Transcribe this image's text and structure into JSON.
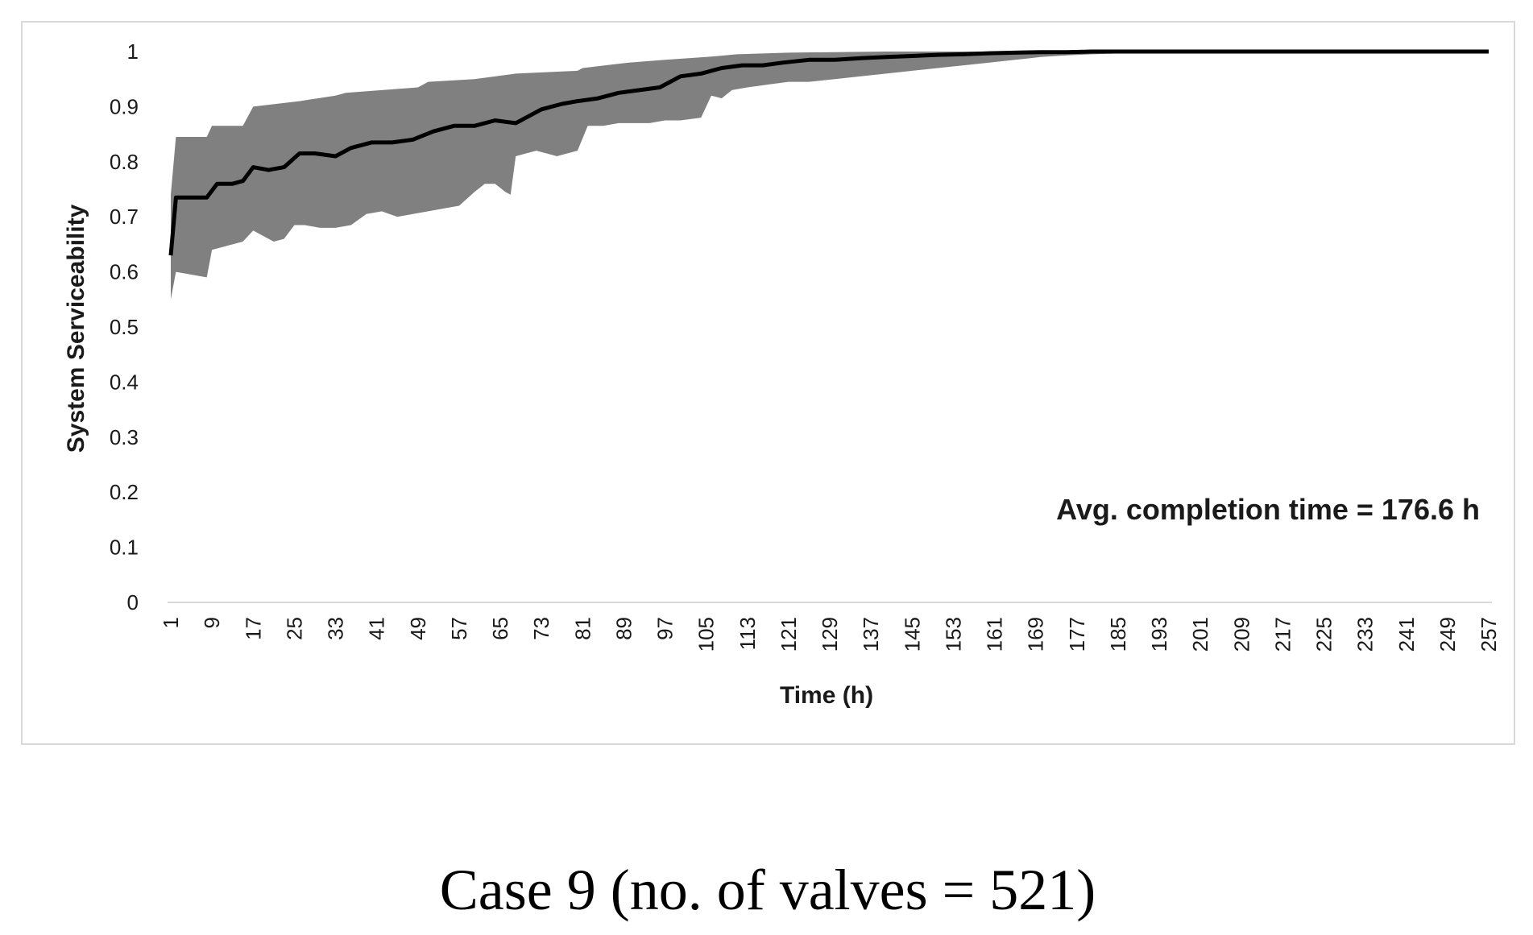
{
  "chart_data": {
    "type": "line",
    "ylabel": "System Serviceability",
    "xlabel": "Time (h)",
    "xlim": [
      1,
      257
    ],
    "ylim": [
      0,
      1
    ],
    "yticks": [
      "0",
      "0.1",
      "0.2",
      "0.3",
      "0.4",
      "0.5",
      "0.6",
      "0.7",
      "0.8",
      "0.9",
      "1"
    ],
    "xticks": [
      "1",
      "9",
      "17",
      "25",
      "33",
      "41",
      "49",
      "57",
      "65",
      "73",
      "81",
      "89",
      "97",
      "105",
      "113",
      "121",
      "129",
      "137",
      "145",
      "153",
      "161",
      "169",
      "177",
      "185",
      "193",
      "201",
      "209",
      "217",
      "225",
      "233",
      "241",
      "249",
      "257"
    ],
    "annotation": "Avg. completion time = 176.6 h",
    "grid": false,
    "series": [
      {
        "role": "mean",
        "color": "#000000",
        "x": [
          1,
          2,
          5,
          8,
          10,
          13,
          15,
          17,
          20,
          23,
          26,
          29,
          33,
          36,
          40,
          44,
          48,
          52,
          56,
          60,
          64,
          68,
          70,
          73,
          77,
          80,
          84,
          88,
          92,
          96,
          100,
          104,
          108,
          112,
          116,
          120,
          125,
          130,
          135,
          140,
          145,
          150,
          155,
          160,
          165,
          170,
          175,
          180,
          190,
          200,
          210,
          220,
          230,
          240,
          250,
          257
        ],
        "y": [
          0.63,
          0.735,
          0.735,
          0.735,
          0.76,
          0.76,
          0.765,
          0.79,
          0.785,
          0.79,
          0.815,
          0.815,
          0.81,
          0.825,
          0.835,
          0.835,
          0.84,
          0.855,
          0.865,
          0.865,
          0.875,
          0.87,
          0.88,
          0.895,
          0.905,
          0.91,
          0.915,
          0.925,
          0.93,
          0.935,
          0.955,
          0.96,
          0.97,
          0.975,
          0.975,
          0.98,
          0.985,
          0.985,
          0.988,
          0.99,
          0.992,
          0.994,
          0.995,
          0.997,
          0.998,
          0.999,
          0.999,
          1.0,
          1.0,
          1.0,
          1.0,
          1.0,
          1.0,
          1.0,
          1.0,
          1.0
        ]
      },
      {
        "role": "upper",
        "color": "#808080",
        "x": [
          1,
          2,
          8,
          9,
          15,
          17,
          26,
          33,
          35,
          49,
          51,
          60,
          68,
          80,
          81,
          90,
          97,
          105,
          111,
          121,
          130,
          140,
          150,
          160,
          170,
          180,
          190,
          200,
          210,
          220,
          240,
          257
        ],
        "y": [
          0.74,
          0.845,
          0.845,
          0.865,
          0.865,
          0.9,
          0.91,
          0.92,
          0.925,
          0.935,
          0.945,
          0.95,
          0.96,
          0.965,
          0.97,
          0.98,
          0.985,
          0.99,
          0.995,
          0.998,
          0.999,
          1.0,
          1.0,
          1.0,
          1.0,
          1.0,
          1.0,
          1.0,
          1.0,
          1.0,
          1.0,
          1.0
        ]
      },
      {
        "role": "lower",
        "color": "#808080",
        "x": [
          1,
          2,
          5,
          8,
          9,
          13,
          15,
          17,
          19,
          21,
          23,
          25,
          27,
          30,
          33,
          36,
          39,
          42,
          45,
          48,
          51,
          54,
          57,
          60,
          62,
          64,
          66,
          67,
          68,
          70,
          72,
          74,
          76,
          78,
          80,
          82,
          85,
          88,
          91,
          94,
          97,
          100,
          104,
          106,
          108,
          110,
          113,
          117,
          121,
          125,
          130,
          135,
          140,
          145,
          150,
          155,
          160,
          165,
          170,
          175,
          180,
          190,
          200,
          210,
          257
        ],
        "y": [
          0.55,
          0.6,
          0.595,
          0.59,
          0.64,
          0.65,
          0.655,
          0.675,
          0.665,
          0.655,
          0.66,
          0.685,
          0.685,
          0.68,
          0.68,
          0.685,
          0.705,
          0.71,
          0.7,
          0.705,
          0.71,
          0.715,
          0.72,
          0.745,
          0.76,
          0.76,
          0.745,
          0.74,
          0.81,
          0.815,
          0.82,
          0.815,
          0.81,
          0.815,
          0.82,
          0.865,
          0.865,
          0.87,
          0.87,
          0.87,
          0.875,
          0.875,
          0.88,
          0.92,
          0.915,
          0.93,
          0.935,
          0.94,
          0.945,
          0.945,
          0.95,
          0.955,
          0.96,
          0.965,
          0.97,
          0.975,
          0.98,
          0.985,
          0.99,
          0.993,
          0.995,
          0.998,
          1.0,
          1.0,
          1.0
        ]
      }
    ]
  },
  "caption": "Case 9 (no. of valves = 521)"
}
